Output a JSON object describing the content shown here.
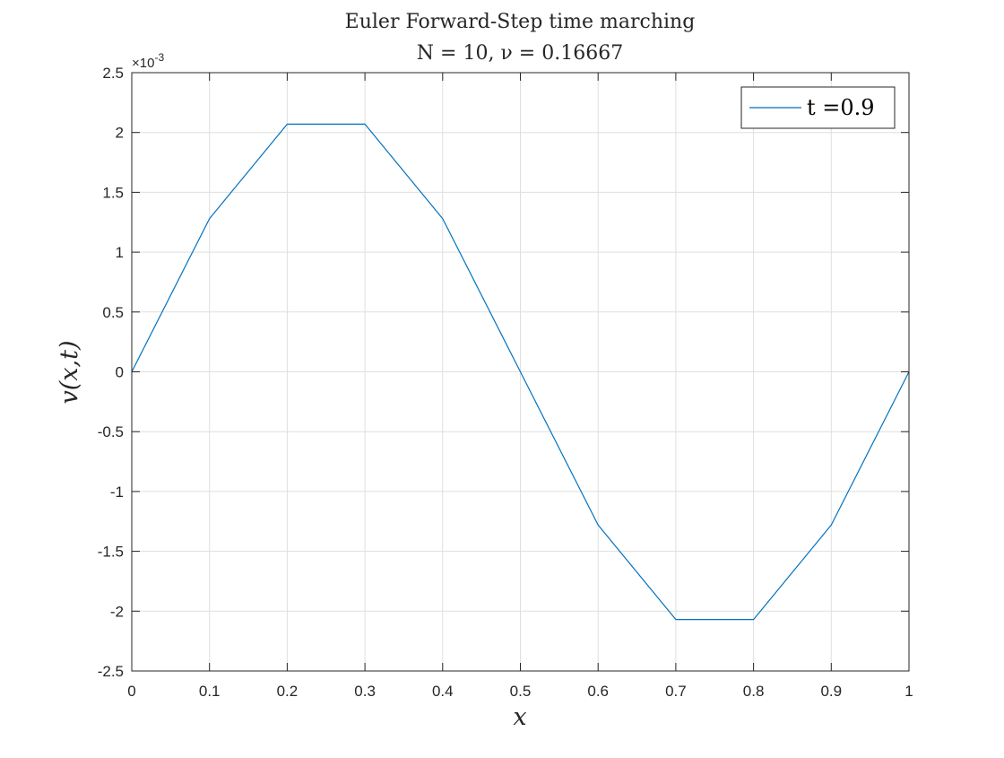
{
  "chart_data": {
    "type": "line",
    "title": "Euler Forward-Step time marching",
    "subtitle": "N = 10,  ν = 0.16667",
    "xlabel": "x",
    "ylabel": "v(x,t)",
    "xlim": [
      0,
      1
    ],
    "ylim": [
      -0.0025,
      0.0025
    ],
    "y_scale_label": "×10",
    "y_scale_exponent": "-3",
    "xticks": [
      "0",
      "0.1",
      "0.2",
      "0.3",
      "0.4",
      "0.5",
      "0.6",
      "0.7",
      "0.8",
      "0.9",
      "1"
    ],
    "yticks": [
      "2.5",
      "2",
      "1.5",
      "1",
      "0.5",
      "0",
      "-0.5",
      "-1",
      "-1.5",
      "-2",
      "-2.5"
    ],
    "xtick_values": [
      0,
      0.1,
      0.2,
      0.3,
      0.4,
      0.5,
      0.6,
      0.7,
      0.8,
      0.9,
      1
    ],
    "ytick_values": [
      0.0025,
      0.002,
      0.0015,
      0.001,
      0.0005,
      0,
      -0.0005,
      -0.001,
      -0.0015,
      -0.002,
      -0.0025
    ],
    "grid": true,
    "legend_position": "top-right",
    "x": [
      0,
      0.1,
      0.2,
      0.3,
      0.4,
      0.5,
      0.6,
      0.7,
      0.8,
      0.9,
      1
    ],
    "series": [
      {
        "name": "t =0.9",
        "color": "#0072BD",
        "values": [
          0,
          0.00128,
          0.00207,
          0.00207,
          0.00128,
          0,
          -0.00128,
          -0.00207,
          -0.00207,
          -0.00128,
          0
        ]
      }
    ]
  }
}
